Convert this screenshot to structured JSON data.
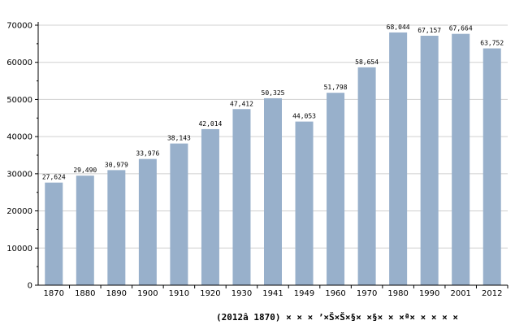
{
  "chart_data": {
    "type": "bar",
    "title": "",
    "xlabel": "",
    "ylabel": "",
    "caption": "(2012â 1870) × × × ʼ×Š×Š×§× ×§× × ×ª× × × × ×",
    "categories": [
      "1870",
      "1880",
      "1890",
      "1900",
      "1910",
      "1920",
      "1930",
      "1941",
      "1949",
      "1960",
      "1970",
      "1980",
      "1990",
      "2001",
      "2012"
    ],
    "values": [
      27624,
      29490,
      30979,
      33976,
      38143,
      42014,
      47412,
      50325,
      44053,
      51798,
      58654,
      68044,
      67157,
      67664,
      63752
    ],
    "value_labels": [
      "27,624",
      "29,490",
      "30,979",
      "33,976",
      "38,143",
      "42,014",
      "47,412",
      "50,325",
      "44,053",
      "51,798",
      "58,654",
      "68,044",
      "67,157",
      "67,664",
      "63,752"
    ],
    "ylim": [
      0,
      70000
    ],
    "yticks": [
      0,
      10000,
      20000,
      30000,
      40000,
      50000,
      60000,
      70000
    ],
    "ytick_labels": [
      "0",
      "10000",
      "20000",
      "30000",
      "40000",
      "50000",
      "60000",
      "70000"
    ],
    "grid": true,
    "legend": "none",
    "colors": {
      "bar": "#98B0CB",
      "grid": "#D0D0D0",
      "axis": "#000000"
    }
  }
}
